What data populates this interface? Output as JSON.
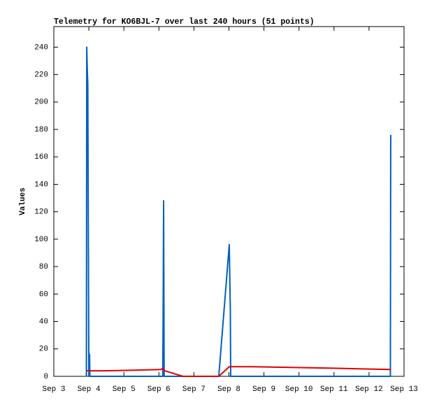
{
  "chart_data": {
    "type": "line",
    "title": "Telemetry for KO6BJL-7 over last 240 hours (51 points)",
    "y_label": "Values",
    "xlim": [
      3,
      13
    ],
    "xticks": [
      {
        "value": 3,
        "label": "Sep 3"
      },
      {
        "value": 4,
        "label": "Sep 4"
      },
      {
        "value": 5,
        "label": "Sep 5"
      },
      {
        "value": 6,
        "label": "Sep 6"
      },
      {
        "value": 7,
        "label": "Sep 7"
      },
      {
        "value": 8,
        "label": "Sep 8"
      },
      {
        "value": 9,
        "label": "Sep 9"
      },
      {
        "value": 10,
        "label": "Sep 10"
      },
      {
        "value": 11,
        "label": "Sep 11"
      },
      {
        "value": 12,
        "label": "Sep 12"
      },
      {
        "value": 13,
        "label": "Sep 13"
      }
    ],
    "ylim": [
      0,
      255
    ],
    "yticks": [
      0,
      20,
      40,
      60,
      80,
      100,
      120,
      140,
      160,
      180,
      200,
      220,
      240
    ],
    "series": [
      {
        "color": "#0060c0",
        "x": [
          3.93,
          3.94,
          3.955,
          3.97,
          3.985,
          4.0,
          4.02,
          4.03,
          6.11,
          6.12,
          6.135,
          6.15,
          7.71,
          8.01,
          8.04,
          8.05,
          12.61,
          12.62
        ],
        "values": [
          0,
          240,
          224,
          213,
          104,
          0,
          16,
          0,
          0,
          40,
          128,
          0,
          0,
          96,
          48,
          0,
          0,
          176
        ]
      },
      {
        "color": "#e00000",
        "x": [
          3.94,
          4.46,
          5.4,
          6.07,
          6.11,
          6.17,
          6.69,
          7.71,
          8.01,
          8.65,
          9.75,
          10.84,
          11.68,
          12.62
        ],
        "values": [
          4,
          4,
          4.5,
          5,
          6,
          4,
          0,
          0,
          7,
          7,
          6.5,
          6,
          5.5,
          5
        ]
      }
    ]
  }
}
